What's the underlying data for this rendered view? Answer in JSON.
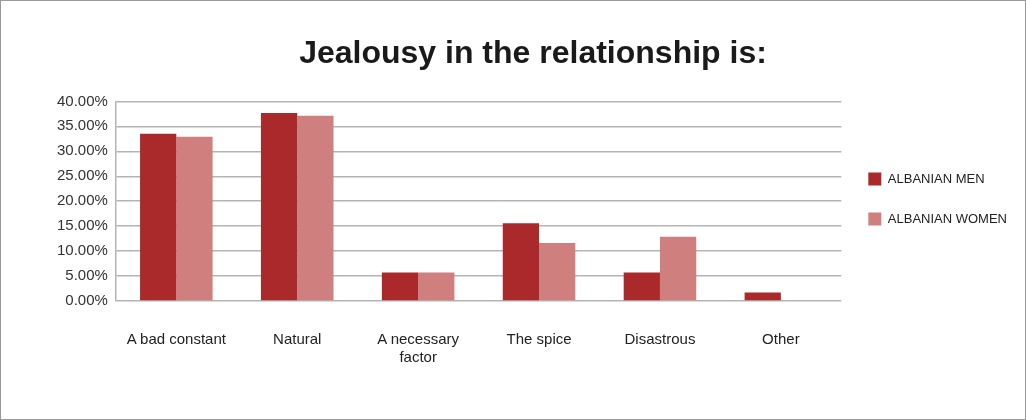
{
  "chart_data": {
    "type": "bar",
    "title": "Jealousy in the relationship is:",
    "categories": [
      "A bad constant",
      "Natural",
      "A necessary factor",
      "The spice",
      "Disastrous",
      "Other"
    ],
    "series": [
      {
        "name": "ALBANIAN MEN",
        "color": "#aa2a2c",
        "values": [
          33.5,
          37.7,
          5.7,
          15.6,
          5.7,
          1.7
        ]
      },
      {
        "name": "ALBANIAN WOMEN",
        "color": "#d07f7f",
        "values": [
          32.9,
          37.1,
          5.7,
          11.6,
          12.9,
          0
        ]
      }
    ],
    "ylim": [
      0,
      40
    ],
    "yticks": [
      {
        "value": 0,
        "label": "0.00%"
      },
      {
        "value": 5,
        "label": "5.00%"
      },
      {
        "value": 10,
        "label": "10.00%"
      },
      {
        "value": 15,
        "label": "15.00%"
      },
      {
        "value": 20,
        "label": "20.00%"
      },
      {
        "value": 25,
        "label": "25.00%"
      },
      {
        "value": 30,
        "label": "30.00%"
      },
      {
        "value": 35,
        "label": "35.00%"
      },
      {
        "value": 40,
        "label": "40.00%"
      }
    ],
    "grid": "y",
    "legend": "right"
  }
}
